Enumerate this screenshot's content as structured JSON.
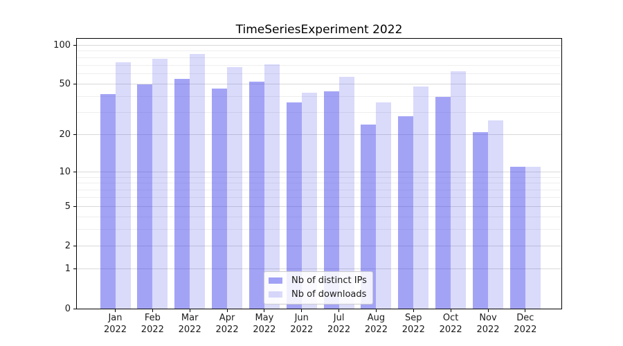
{
  "chart_data": {
    "type": "bar",
    "title": "TimeSeriesExperiment 2022",
    "categories": [
      "Jan 2022",
      "Feb 2022",
      "Mar 2022",
      "Apr 2022",
      "May 2022",
      "Jun 2022",
      "Jul 2022",
      "Aug 2022",
      "Sep 2022",
      "Oct 2022",
      "Nov 2022",
      "Dec 2022"
    ],
    "series": [
      {
        "name": "Nb of distinct IPs",
        "color": "#3C3CEB",
        "alpha": 0.47,
        "values": [
          42,
          50,
          55,
          46,
          52,
          36,
          44,
          24,
          28,
          40,
          21,
          11
        ]
      },
      {
        "name": "Nb of downloads",
        "color": "#3C3CEB",
        "alpha": 0.19,
        "values": [
          74,
          79,
          86,
          68,
          71,
          43,
          57,
          36,
          48,
          63,
          26,
          11
        ]
      }
    ],
    "y_axis": {
      "scale": "log10(value+1)",
      "major_ticks": [
        100,
        50,
        20,
        10,
        5,
        2,
        1,
        0
      ],
      "minor_ticks": [
        3,
        4,
        6,
        7,
        8,
        9,
        30,
        40,
        60,
        70,
        80,
        90
      ],
      "top_value": 112
    },
    "x_axis": {
      "tick_labels_two_lines": true
    },
    "legend": {
      "position": "lower center"
    },
    "grid": true,
    "colors": {
      "grid_major": "#d9d9d9",
      "grid_minor": "#eeeeee",
      "axis": "#000000",
      "text": "#1a1a1a",
      "background": "#ffffff"
    }
  }
}
